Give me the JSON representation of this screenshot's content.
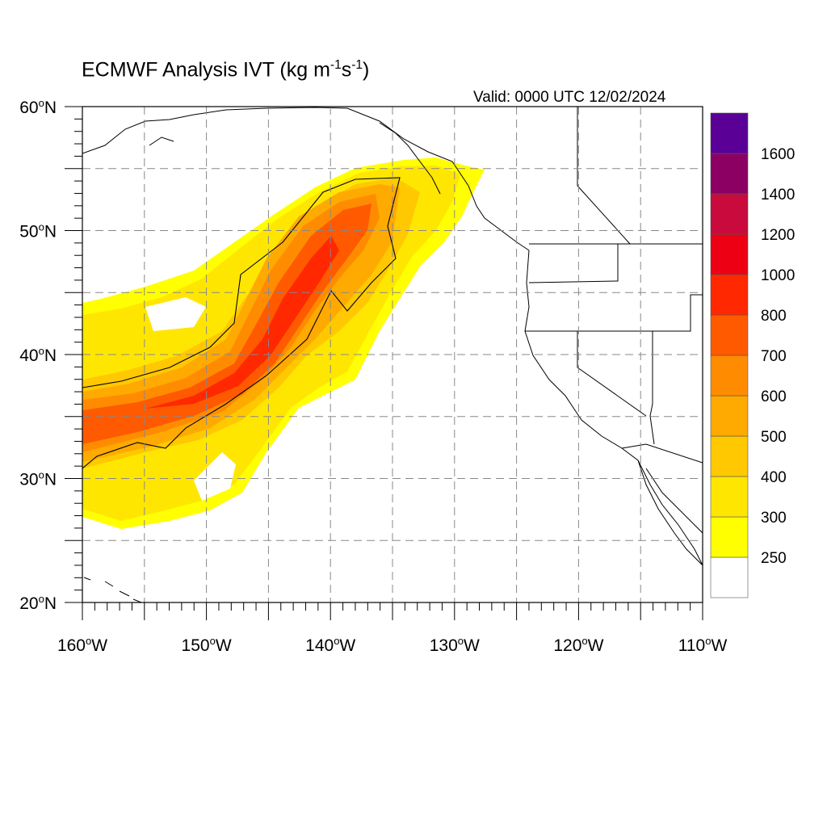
{
  "title_main": "ECMWF Analysis IVT (kg m",
  "title_sup1": "-1",
  "title_mid": "s",
  "title_sup2": "-1",
  "title_end": ")",
  "valid": "Valid: 0000 UTC 12/02/2024",
  "lat_labels": [
    {
      "deg": "60",
      "unit": "o",
      "dir": "N"
    },
    {
      "deg": "50",
      "unit": "o",
      "dir": "N"
    },
    {
      "deg": "40",
      "unit": "o",
      "dir": "N"
    },
    {
      "deg": "30",
      "unit": "o",
      "dir": "N"
    },
    {
      "deg": "20",
      "unit": "o",
      "dir": "N"
    }
  ],
  "lon_labels": [
    {
      "deg": "160",
      "unit": "o",
      "dir": "W"
    },
    {
      "deg": "150",
      "unit": "o",
      "dir": "W"
    },
    {
      "deg": "140",
      "unit": "o",
      "dir": "W"
    },
    {
      "deg": "130",
      "unit": "o",
      "dir": "W"
    },
    {
      "deg": "120",
      "unit": "o",
      "dir": "W"
    },
    {
      "deg": "110",
      "unit": "o",
      "dir": "W"
    }
  ],
  "colorbar": {
    "colors": [
      "#ffffff",
      "#ffff00",
      "#ffe600",
      "#ffc800",
      "#ffaa00",
      "#ff8c00",
      "#ff5a00",
      "#ff2800",
      "#ee0014",
      "#c80a3c",
      "#8c0064",
      "#5a0096"
    ],
    "labels": [
      "250",
      "300",
      "400",
      "500",
      "600",
      "700",
      "800",
      "1000",
      "1200",
      "1400",
      "1600"
    ]
  },
  "map_extent": {
    "lon_min": -160,
    "lon_max": -110,
    "lat_min": 20,
    "lat_max": 60
  }
}
